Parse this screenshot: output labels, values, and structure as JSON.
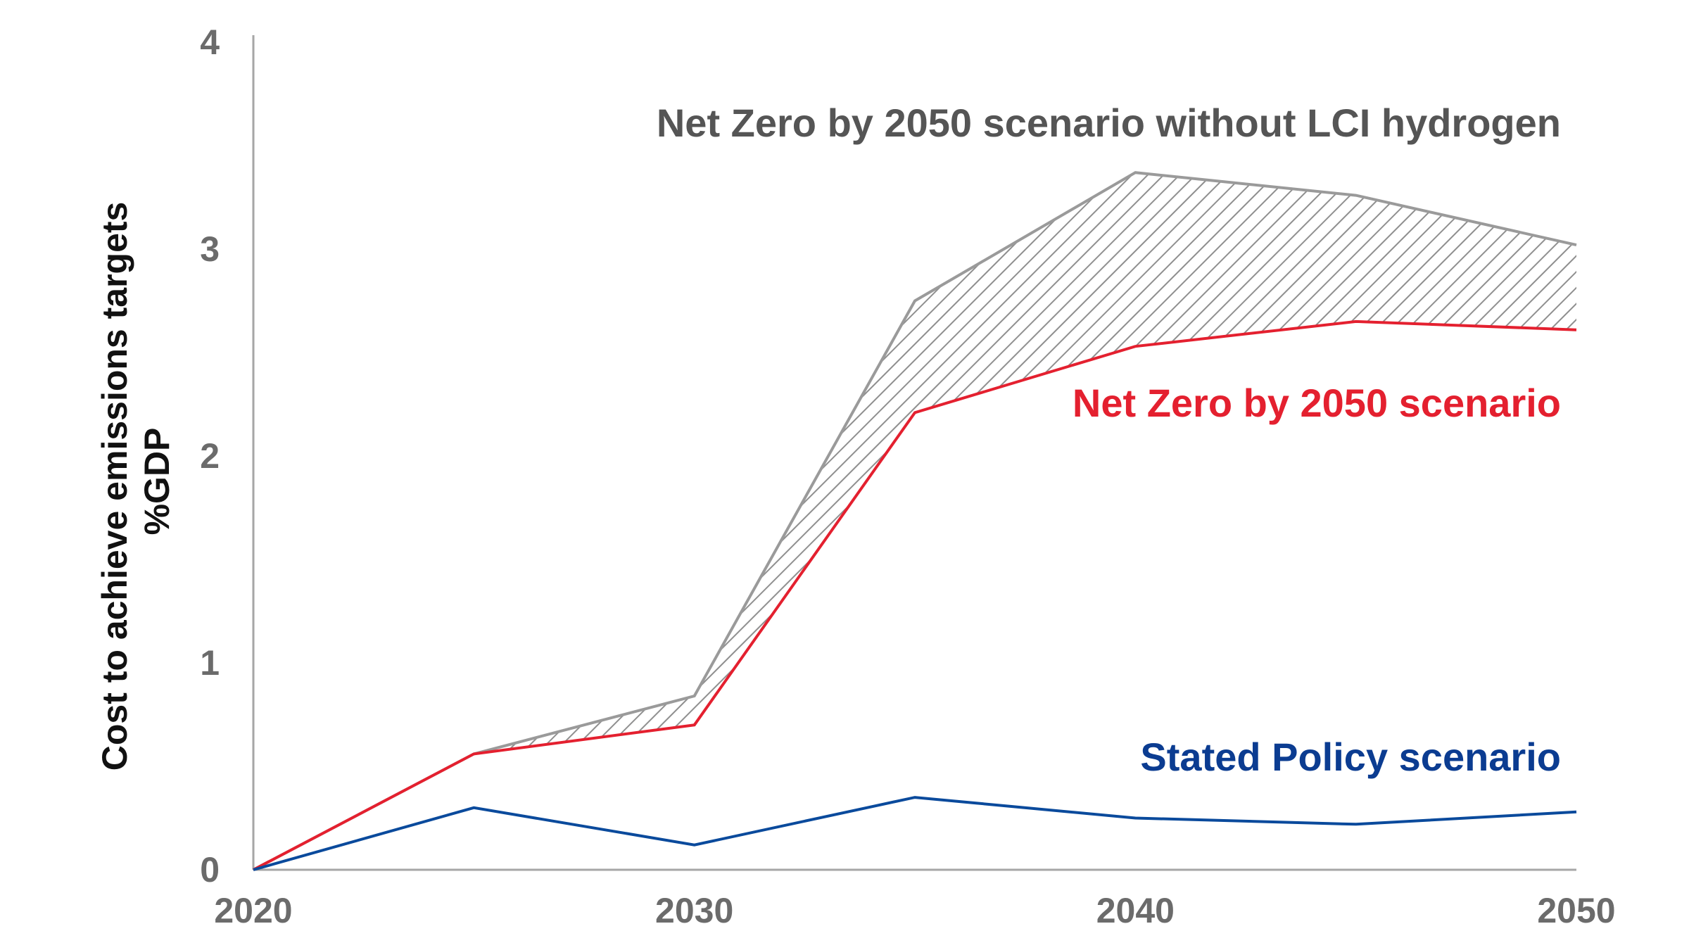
{
  "chart_data": {
    "type": "line",
    "x": [
      2020,
      2025,
      2030,
      2035,
      2040,
      2045,
      2050
    ],
    "xticks": [
      "2020",
      "2030",
      "2040",
      "2050"
    ],
    "yticks": [
      "0",
      "1",
      "2",
      "3",
      "4"
    ],
    "xlim": [
      2020,
      2050
    ],
    "ylim": [
      0,
      4
    ],
    "ylabel_line1": "Cost to achieve emissions targets",
    "ylabel_line2": "%GDP",
    "grid": false,
    "series": [
      {
        "name": "Net Zero by 2050 scenario without LCI hydrogen",
        "values": [
          0,
          0.56,
          0.84,
          2.75,
          3.37,
          3.26,
          3.02
        ],
        "color": "#9a9a9a",
        "label_color": "#555555",
        "style": "hatched-band"
      },
      {
        "name": "Net Zero by 2050 scenario",
        "values": [
          0,
          0.56,
          0.7,
          2.21,
          2.53,
          2.65,
          2.61
        ],
        "color": "#e4202f",
        "label_color": "#e4202f",
        "style": "line"
      },
      {
        "name": "Stated Policy scenario",
        "values": [
          0,
          0.3,
          0.12,
          0.35,
          0.25,
          0.22,
          0.28
        ],
        "color": "#0a4a9c",
        "label_color": "#0b3c91",
        "style": "line"
      }
    ]
  }
}
